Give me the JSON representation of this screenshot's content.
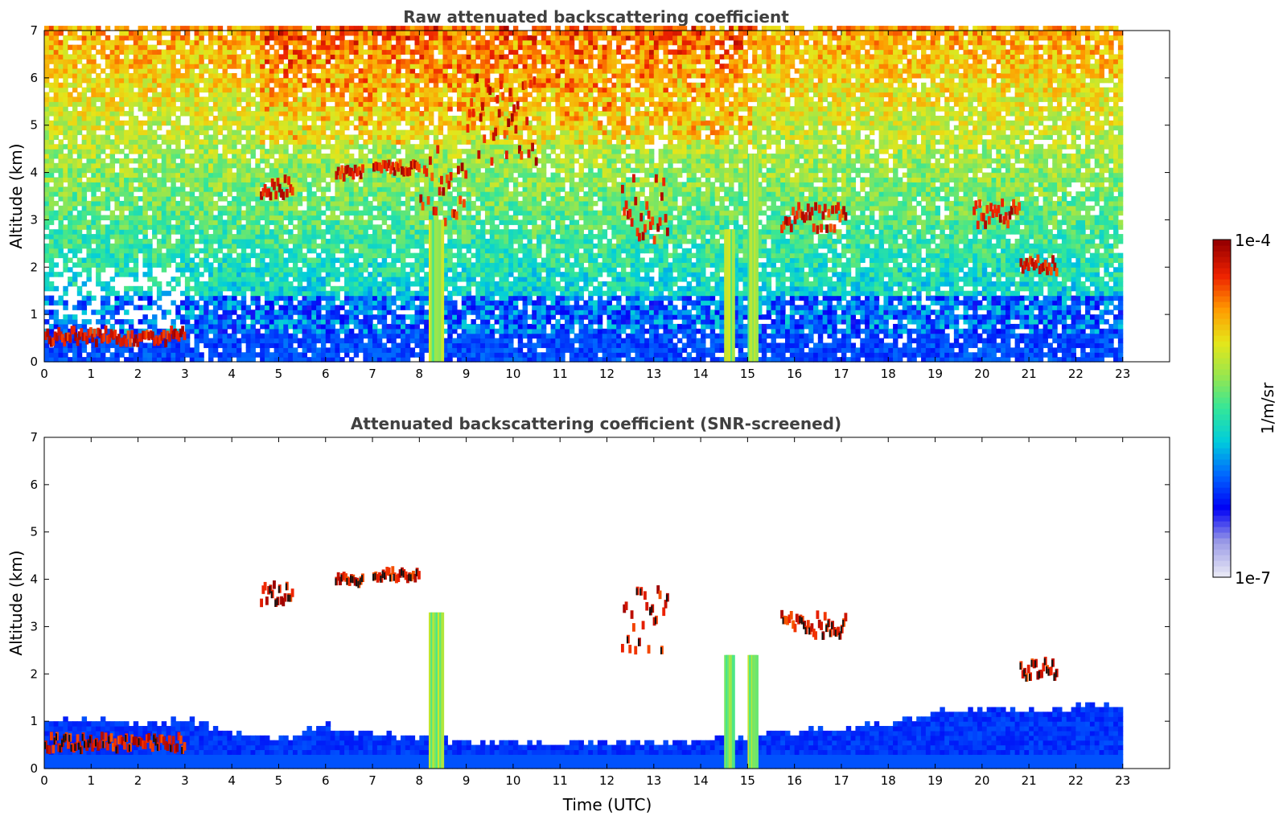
{
  "chart_data": [
    {
      "type": "heatmap",
      "title": "Raw attenuated backscattering coefficient",
      "xlabel": "",
      "ylabel": "Altitude (km)",
      "xlim": [
        0,
        24
      ],
      "ylim": [
        0,
        7
      ],
      "x_ticks": [
        "0",
        "1",
        "2",
        "3",
        "4",
        "5",
        "6",
        "7",
        "8",
        "9",
        "10",
        "11",
        "12",
        "13",
        "14",
        "15",
        "16",
        "17",
        "18",
        "19",
        "20",
        "21",
        "22",
        "23"
      ],
      "y_ticks": [
        "0",
        "1",
        "2",
        "3",
        "4",
        "5",
        "6",
        "7"
      ],
      "data_extent_hours": [
        0,
        23
      ],
      "features": [
        {
          "x": [
            0.0,
            3.0
          ],
          "y": [
            0.3,
            0.6
          ],
          "level": "high"
        },
        {
          "x": [
            4.6,
            5.3
          ],
          "y": [
            3.4,
            3.8
          ],
          "level": "high"
        },
        {
          "x": [
            6.2,
            6.8
          ],
          "y": [
            3.8,
            4.0
          ],
          "level": "high"
        },
        {
          "x": [
            7.0,
            8.0
          ],
          "y": [
            3.9,
            4.1
          ],
          "level": "high"
        },
        {
          "x": [
            8.0,
            9.0
          ],
          "y": [
            2.8,
            4.4
          ],
          "level": "high"
        },
        {
          "x": [
            9.0,
            10.5
          ],
          "y": [
            4.0,
            6.0
          ],
          "level": "high"
        },
        {
          "x": [
            12.3,
            13.3
          ],
          "y": [
            2.4,
            3.8
          ],
          "level": "high"
        },
        {
          "x": [
            15.7,
            17.1
          ],
          "y": [
            2.7,
            3.2
          ],
          "level": "high"
        },
        {
          "x": [
            20.8,
            21.6
          ],
          "y": [
            1.8,
            2.2
          ],
          "level": "high"
        },
        {
          "x": [
            19.8,
            20.8
          ],
          "y": [
            2.8,
            3.3
          ],
          "level": "high"
        },
        {
          "x": [
            8.2,
            8.5
          ],
          "y": [
            0.0,
            3.0
          ],
          "level": "mid"
        },
        {
          "x": [
            15.0,
            15.2
          ],
          "y": [
            0.0,
            4.4
          ],
          "level": "mid"
        },
        {
          "x": [
            14.5,
            14.7
          ],
          "y": [
            0.0,
            2.8
          ],
          "level": "mid"
        }
      ]
    },
    {
      "type": "heatmap",
      "title": "Attenuated backscattering coefficient (SNR-screened)",
      "xlabel": "Time (UTC)",
      "ylabel": "Altitude (km)",
      "xlim": [
        0,
        24
      ],
      "ylim": [
        0,
        7
      ],
      "x_ticks": [
        "0",
        "1",
        "2",
        "3",
        "4",
        "5",
        "6",
        "7",
        "8",
        "9",
        "10",
        "11",
        "12",
        "13",
        "14",
        "15",
        "16",
        "17",
        "18",
        "19",
        "20",
        "21",
        "22",
        "23"
      ],
      "y_ticks": [
        "0",
        "1",
        "2",
        "3",
        "4",
        "5",
        "6",
        "7"
      ],
      "data_extent_hours": [
        0,
        23
      ],
      "boundary_layer_top_km": [
        [
          0,
          1.0
        ],
        [
          2,
          0.9
        ],
        [
          3,
          1.0
        ],
        [
          4,
          0.7
        ],
        [
          5,
          0.6
        ],
        [
          6,
          0.85
        ],
        [
          7,
          0.7
        ],
        [
          8,
          0.6
        ],
        [
          9,
          0.5
        ],
        [
          10,
          0.5
        ],
        [
          11,
          0.5
        ],
        [
          12,
          0.5
        ],
        [
          13,
          0.5
        ],
        [
          14,
          0.55
        ],
        [
          15,
          0.65
        ],
        [
          16,
          0.75
        ],
        [
          17,
          0.8
        ],
        [
          18,
          0.9
        ],
        [
          19,
          1.15
        ],
        [
          20,
          1.2
        ],
        [
          21,
          1.2
        ],
        [
          22,
          1.25
        ],
        [
          23,
          1.3
        ]
      ],
      "features": [
        {
          "x": [
            0.0,
            3.0
          ],
          "y": [
            0.3,
            0.6
          ],
          "level": "high"
        },
        {
          "x": [
            4.6,
            5.3
          ],
          "y": [
            3.4,
            3.8
          ],
          "level": "high"
        },
        {
          "x": [
            6.2,
            6.8
          ],
          "y": [
            3.8,
            4.0
          ],
          "level": "high"
        },
        {
          "x": [
            7.0,
            8.0
          ],
          "y": [
            3.9,
            4.1
          ],
          "level": "high"
        },
        {
          "x": [
            12.3,
            13.3
          ],
          "y": [
            2.4,
            3.8
          ],
          "level": "high"
        },
        {
          "x": [
            15.7,
            17.1
          ],
          "y": [
            2.7,
            3.2
          ],
          "level": "high"
        },
        {
          "x": [
            20.8,
            21.6
          ],
          "y": [
            1.8,
            2.2
          ],
          "level": "high"
        },
        {
          "x": [
            8.2,
            8.5
          ],
          "y": [
            0.0,
            3.3
          ],
          "level": "mid"
        },
        {
          "x": [
            15.0,
            15.2
          ],
          "y": [
            0.0,
            2.4
          ],
          "level": "mid"
        },
        {
          "x": [
            14.5,
            14.7
          ],
          "y": [
            0.0,
            2.4
          ],
          "level": "mid"
        }
      ]
    }
  ],
  "colorbar": {
    "label": "1/m/sr",
    "max_label": "1e-4",
    "min_label": "1e-7",
    "scale": "log",
    "colormap": "jet",
    "range": [
      1e-07,
      0.0001
    ]
  },
  "colors": {
    "cb_stops": [
      "#e6e6f5",
      "#9999e6",
      "#0000f5",
      "#0066ff",
      "#00ccdd",
      "#33e699",
      "#99e64d",
      "#e6e619",
      "#ff9900",
      "#ee2200",
      "#990000"
    ]
  }
}
